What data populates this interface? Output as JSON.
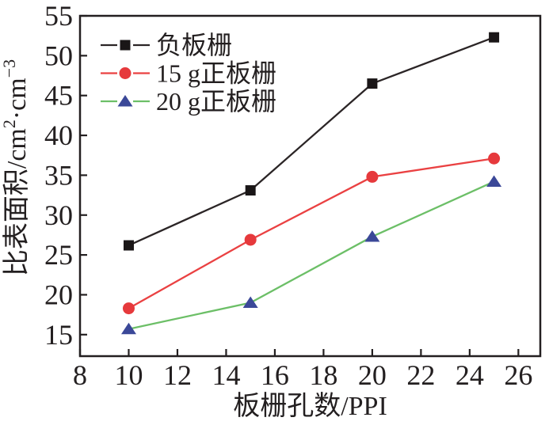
{
  "figure": {
    "background_color": "#ffffff",
    "frame_color": "#231f20",
    "text_color": "#231f20"
  },
  "chart_data": {
    "type": "line",
    "title": "",
    "xlabel": "板栅孔数/PPI",
    "ylabel": "比表面积/cm²·cm⁻³",
    "ylabel_segments": [
      {
        "t": "比表面积/cm",
        "sup": false
      },
      {
        "t": "2",
        "sup": true
      },
      {
        "t": "·cm",
        "sup": false
      },
      {
        "t": "−3",
        "sup": true
      }
    ],
    "x": [
      10,
      15,
      20,
      25
    ],
    "series": [
      {
        "name": "负板栅",
        "values": [
          26.2,
          33.1,
          46.5,
          52.3
        ],
        "line_color": "#2b2526",
        "marker": "square",
        "marker_color": "#1a1617"
      },
      {
        "name": "15 g正板栅",
        "values": [
          18.3,
          26.9,
          34.8,
          37.1
        ],
        "line_color": "#ea4142",
        "marker": "circle",
        "marker_color": "#e6393c"
      },
      {
        "name": "20 g正板栅",
        "values": [
          15.7,
          19.0,
          27.3,
          34.2
        ],
        "line_color": "#6cbf67",
        "marker": "triangle",
        "marker_color": "#3b4898"
      }
    ],
    "x_ticks": [
      8,
      10,
      12,
      14,
      16,
      18,
      20,
      22,
      24,
      26
    ],
    "y_ticks": [
      15,
      20,
      25,
      30,
      35,
      40,
      45,
      50,
      55
    ],
    "xlim": [
      8,
      26.9
    ],
    "ylim": [
      12.3,
      55
    ],
    "grid": false,
    "legend_position": "top-left"
  }
}
